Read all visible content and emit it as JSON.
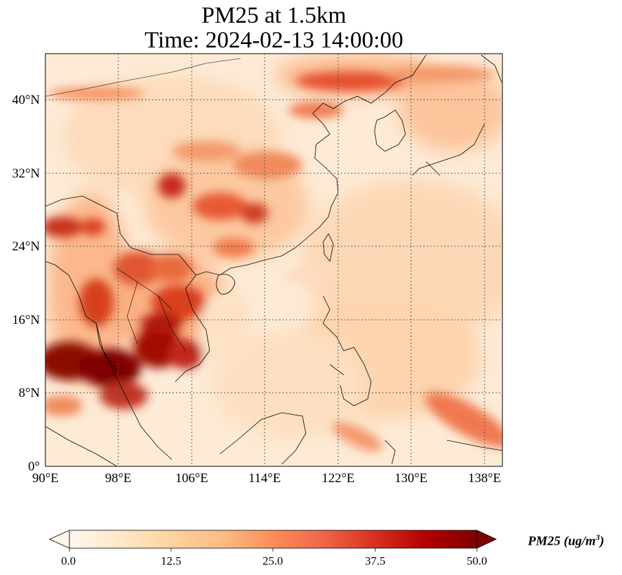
{
  "title_line1": "PM25 at 1.5km",
  "title_line2": "Time: 2024-02-13 14:00:00",
  "x_ticks": [
    "90°E",
    "98°E",
    "106°E",
    "114°E",
    "122°E",
    "130°E",
    "138°E"
  ],
  "y_ticks": [
    "0°",
    "8°N",
    "16°N",
    "24°N",
    "32°N",
    "40°N"
  ],
  "colorbar": {
    "ticks": [
      "0.0",
      "12.5",
      "25.0",
      "37.5",
      "50.0"
    ],
    "label_prefix": "PM25 (ug/m",
    "label_exponent": "3",
    "label_suffix": ")",
    "cmap_stops": [
      "#fff7ec",
      "#fee8c8",
      "#fdd49e",
      "#fdbb84",
      "#fc8d59",
      "#ef6548",
      "#d7301f",
      "#b30000",
      "#7f0000"
    ],
    "range": [
      0,
      50
    ]
  },
  "map": {
    "lon_range": [
      90,
      140
    ],
    "lat_range": [
      0,
      45
    ],
    "projection": "PlateCarree",
    "gridlines": "dotted",
    "variable": "PM25",
    "level": "1.5km"
  }
}
